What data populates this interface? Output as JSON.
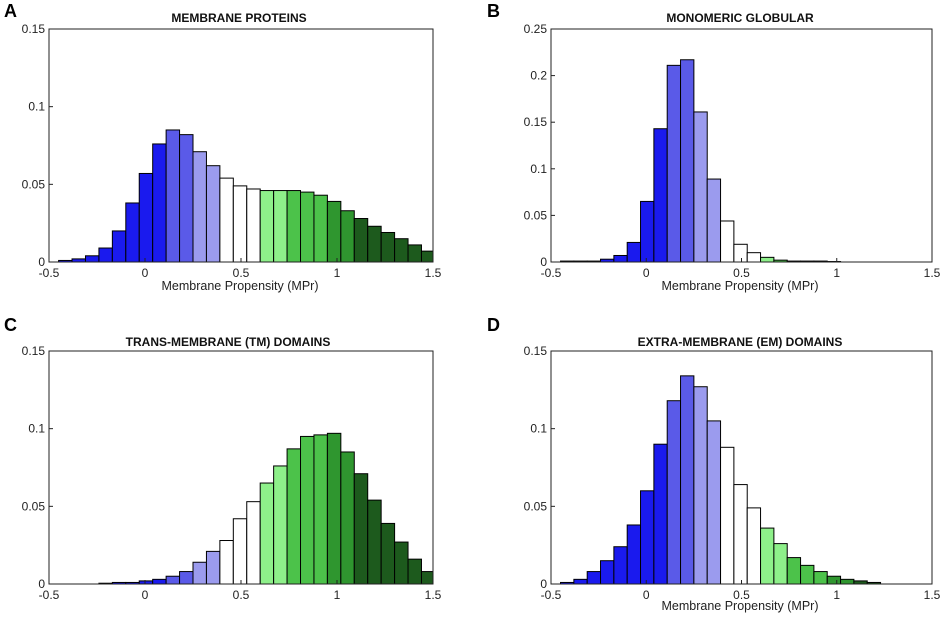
{
  "figure": {
    "colors": {
      "blue_dark": "#1a1aee",
      "blue_mid": "#5a5ae8",
      "blue_light": "#9b9bee",
      "white": "#ffffff",
      "green_light": "#8ef08a",
      "green_mid": "#4cc24a",
      "green_dark": "#2f962f",
      "green_darkest": "#1d5a1d"
    }
  },
  "chart_data": [
    {
      "panel": "A",
      "type": "bar",
      "title": "MEMBRANE PROTEINS",
      "xlabel": "Membrane Propensity (MPr)",
      "ylabel": "",
      "xlim": [
        -0.5,
        1.5
      ],
      "ylim": [
        0,
        0.15
      ],
      "xticks": [
        "-0.5",
        "0",
        "0.5",
        "1",
        "1.5"
      ],
      "yticks": [
        "0",
        "0.05",
        "0.1",
        "0.15"
      ],
      "bin_width": 0.07,
      "bin_start": -0.45,
      "values": [
        0.001,
        0.002,
        0.004,
        0.009,
        0.02,
        0.038,
        0.057,
        0.076,
        0.085,
        0.082,
        0.071,
        0.062,
        0.054,
        0.049,
        0.047,
        0.046,
        0.046,
        0.046,
        0.045,
        0.043,
        0.039,
        0.033,
        0.028,
        0.023,
        0.019,
        0.015,
        0.011,
        0.007,
        0.005,
        0.003
      ],
      "colors": [
        "blue_dark",
        "blue_dark",
        "blue_dark",
        "blue_dark",
        "blue_dark",
        "blue_dark",
        "blue_dark",
        "blue_dark",
        "blue_mid",
        "blue_mid",
        "blue_light",
        "blue_light",
        "white",
        "white",
        "white",
        "green_light",
        "green_light",
        "green_mid",
        "green_mid",
        "green_mid",
        "green_dark",
        "green_dark",
        "green_darkest",
        "green_darkest",
        "green_darkest",
        "green_darkest",
        "green_darkest",
        "green_darkest",
        "green_darkest",
        "green_darkest"
      ]
    },
    {
      "panel": "B",
      "type": "bar",
      "title": "MONOMERIC GLOBULAR",
      "xlabel": "Membrane Propensity (MPr)",
      "ylabel": "",
      "xlim": [
        -0.5,
        1.5
      ],
      "ylim": [
        0,
        0.25
      ],
      "xticks": [
        "-0.5",
        "0",
        "0.5",
        "1",
        "1.5"
      ],
      "yticks": [
        "0",
        "0.05",
        "0.1",
        "0.15",
        "0.2",
        "0.25"
      ],
      "bin_width": 0.07,
      "bin_start": -0.45,
      "values": [
        0.001,
        0.001,
        0.001,
        0.003,
        0.007,
        0.021,
        0.065,
        0.143,
        0.211,
        0.217,
        0.161,
        0.089,
        0.044,
        0.019,
        0.01,
        0.005,
        0.002,
        0.001,
        0.001,
        0.001,
        0.0005
      ],
      "colors": [
        "blue_dark",
        "blue_dark",
        "blue_dark",
        "blue_dark",
        "blue_dark",
        "blue_dark",
        "blue_dark",
        "blue_dark",
        "blue_mid",
        "blue_mid",
        "blue_light",
        "blue_light",
        "white",
        "white",
        "white",
        "green_light",
        "green_mid",
        "green_mid",
        "green_dark",
        "green_dark",
        "green_dark"
      ]
    },
    {
      "panel": "C",
      "type": "bar",
      "title": "TRANS-MEMBRANE (TM) DOMAINS",
      "xlabel": "",
      "ylabel": "",
      "xlim": [
        -0.5,
        1.5
      ],
      "ylim": [
        0,
        0.15
      ],
      "xticks": [
        "-0.5",
        "0",
        "0.5",
        "1",
        "1.5"
      ],
      "yticks": [
        "0",
        "0.05",
        "0.1",
        "0.15"
      ],
      "bin_width": 0.07,
      "bin_start": -0.45,
      "values": [
        0,
        0,
        0,
        0.0005,
        0.001,
        0.001,
        0.002,
        0.003,
        0.005,
        0.008,
        0.014,
        0.021,
        0.028,
        0.042,
        0.053,
        0.065,
        0.076,
        0.087,
        0.095,
        0.096,
        0.097,
        0.085,
        0.071,
        0.054,
        0.039,
        0.027,
        0.016,
        0.008,
        0.004,
        0.003
      ],
      "colors": [
        "blue_dark",
        "blue_dark",
        "blue_dark",
        "blue_dark",
        "blue_dark",
        "blue_dark",
        "blue_dark",
        "blue_dark",
        "blue_mid",
        "blue_mid",
        "blue_light",
        "blue_light",
        "white",
        "white",
        "white",
        "green_light",
        "green_light",
        "green_mid",
        "green_mid",
        "green_mid",
        "green_dark",
        "green_dark",
        "green_darkest",
        "green_darkest",
        "green_darkest",
        "green_darkest",
        "green_darkest",
        "green_darkest",
        "green_darkest",
        "green_darkest"
      ]
    },
    {
      "panel": "D",
      "type": "bar",
      "title": "EXTRA-MEMBRANE (EM) DOMAINS",
      "xlabel": "Membrane Propensity (MPr)",
      "ylabel": "",
      "xlim": [
        -0.5,
        1.5
      ],
      "ylim": [
        0,
        0.15
      ],
      "xticks": [
        "-0.5",
        "0",
        "0.5",
        "1",
        "1.5"
      ],
      "yticks": [
        "0",
        "0.05",
        "0.1",
        "0.15"
      ],
      "bin_width": 0.07,
      "bin_start": -0.45,
      "values": [
        0.001,
        0.003,
        0.008,
        0.015,
        0.024,
        0.038,
        0.06,
        0.09,
        0.118,
        0.134,
        0.127,
        0.105,
        0.088,
        0.064,
        0.049,
        0.036,
        0.026,
        0.017,
        0.012,
        0.008,
        0.005,
        0.003,
        0.002,
        0.001
      ],
      "colors": [
        "blue_dark",
        "blue_dark",
        "blue_dark",
        "blue_dark",
        "blue_dark",
        "blue_dark",
        "blue_dark",
        "blue_dark",
        "blue_mid",
        "blue_mid",
        "blue_light",
        "blue_light",
        "white",
        "white",
        "white",
        "green_light",
        "green_light",
        "green_mid",
        "green_mid",
        "green_mid",
        "green_dark",
        "green_dark",
        "green_darkest",
        "green_darkest"
      ]
    }
  ]
}
